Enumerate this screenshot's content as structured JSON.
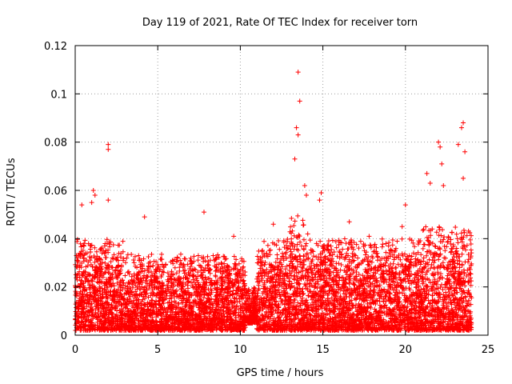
{
  "chart_data": {
    "type": "scatter",
    "title": "Day 119 of 2021, Rate Of TEC Index for receiver torn",
    "xlabel": "GPS time / hours",
    "ylabel": "ROTI / TECUs",
    "xlim": [
      0,
      25
    ],
    "ylim": [
      0,
      0.12
    ],
    "xticks": [
      0,
      5,
      10,
      15,
      20,
      25
    ],
    "xtick_labels": [
      "0",
      "5",
      "10",
      "15",
      "20",
      "25"
    ],
    "yticks": [
      0,
      0.02,
      0.04,
      0.06,
      0.08,
      0.1,
      0.12
    ],
    "ytick_labels": [
      "0",
      "0.02",
      "0.04",
      "0.06",
      "0.08",
      "0.1",
      "0.12"
    ],
    "grid": true,
    "marker": "plus",
    "color": "#ff0000",
    "x_range_of_data": [
      0,
      24
    ],
    "notable_points": [
      {
        "x": 13.5,
        "y": 0.109
      },
      {
        "x": 13.6,
        "y": 0.097
      },
      {
        "x": 13.4,
        "y": 0.086
      },
      {
        "x": 13.5,
        "y": 0.083
      },
      {
        "x": 2.0,
        "y": 0.079
      },
      {
        "x": 2.0,
        "y": 0.077
      },
      {
        "x": 23.5,
        "y": 0.088
      },
      {
        "x": 23.4,
        "y": 0.086
      },
      {
        "x": 22.0,
        "y": 0.08
      },
      {
        "x": 22.1,
        "y": 0.078
      },
      {
        "x": 23.2,
        "y": 0.079
      },
      {
        "x": 23.6,
        "y": 0.076
      },
      {
        "x": 13.3,
        "y": 0.073
      },
      {
        "x": 22.2,
        "y": 0.071
      },
      {
        "x": 21.3,
        "y": 0.067
      },
      {
        "x": 23.5,
        "y": 0.065
      },
      {
        "x": 1.1,
        "y": 0.06
      },
      {
        "x": 1.2,
        "y": 0.058
      },
      {
        "x": 0.4,
        "y": 0.054
      },
      {
        "x": 1.0,
        "y": 0.055
      },
      {
        "x": 2.0,
        "y": 0.056
      },
      {
        "x": 14.9,
        "y": 0.059
      },
      {
        "x": 14.8,
        "y": 0.056
      },
      {
        "x": 20.0,
        "y": 0.054
      },
      {
        "x": 21.5,
        "y": 0.063
      },
      {
        "x": 22.3,
        "y": 0.062
      },
      {
        "x": 13.9,
        "y": 0.062
      },
      {
        "x": 14.0,
        "y": 0.058
      },
      {
        "x": 7.8,
        "y": 0.051
      },
      {
        "x": 4.2,
        "y": 0.049
      },
      {
        "x": 16.6,
        "y": 0.047
      },
      {
        "x": 12.0,
        "y": 0.046
      },
      {
        "x": 9.6,
        "y": 0.041
      },
      {
        "x": 19.8,
        "y": 0.045
      },
      {
        "x": 17.8,
        "y": 0.041
      }
    ],
    "dense_band": [
      {
        "x_from": 0,
        "x_to": 3,
        "y_min": 0.002,
        "y_max": 0.04
      },
      {
        "x_from": 3,
        "x_to": 10.3,
        "y_min": 0.002,
        "y_max": 0.034
      },
      {
        "x_from": 10.3,
        "x_to": 11.0,
        "y_min": 0.005,
        "y_max": 0.02
      },
      {
        "x_from": 11.0,
        "x_to": 13.0,
        "y_min": 0.002,
        "y_max": 0.04
      },
      {
        "x_from": 13.0,
        "x_to": 14.2,
        "y_min": 0.002,
        "y_max": 0.05
      },
      {
        "x_from": 14.2,
        "x_to": 21.0,
        "y_min": 0.002,
        "y_max": 0.04
      },
      {
        "x_from": 21.0,
        "x_to": 24.0,
        "y_min": 0.002,
        "y_max": 0.045
      }
    ]
  }
}
